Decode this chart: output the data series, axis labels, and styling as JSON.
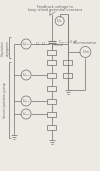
{
  "bg_color": "#ede9e3",
  "line_color": "#7a7a7a",
  "text_color": "#6a6a6a",
  "title_text1": "Feedback voltage to",
  "title_text2": "keep island potential constant",
  "left_label_pump": "Seven-junction pump",
  "left_label_cap": "Capacitor\ncryogenic",
  "electrometer_label": "Electrometer",
  "us_label": "Us",
  "figsize": [
    1.0,
    1.71
  ],
  "dpi": 100
}
